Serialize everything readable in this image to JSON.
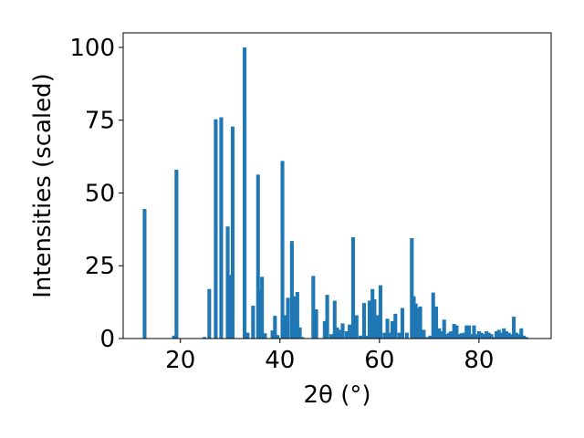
{
  "chart_data": {
    "type": "bar",
    "xlabel": "2θ (°)",
    "ylabel": "Intensities (scaled)",
    "xlim": [
      8.5,
      94.5
    ],
    "ylim": [
      0,
      105
    ],
    "x_ticks": [
      20,
      40,
      60,
      80
    ],
    "x_tick_labels": [
      "20",
      "40",
      "60",
      "80"
    ],
    "y_ticks": [
      0,
      25,
      50,
      75,
      100
    ],
    "y_tick_labels": [
      "0",
      "25",
      "50",
      "75",
      "100"
    ],
    "bar_color": "#1f77b4",
    "bar_width": 0.75,
    "x": [
      12.8,
      18.7,
      19.2,
      24.8,
      25.8,
      27.1,
      28.2,
      29.5,
      30.0,
      30.5,
      32.9,
      33.5,
      34.6,
      35.6,
      36.0,
      36.4,
      37.0,
      38.5,
      39.0,
      39.5,
      40.5,
      41.0,
      41.6,
      42.4,
      42.9,
      43.5,
      44.0,
      44.5,
      46.7,
      47.3,
      49.0,
      49.5,
      50.3,
      51.0,
      51.5,
      52.0,
      52.6,
      53.4,
      54.0,
      54.7,
      55.4,
      56.2,
      56.9,
      57.5,
      58.0,
      58.6,
      59.0,
      59.6,
      60.2,
      61.0,
      61.6,
      62.0,
      62.6,
      63.2,
      64.0,
      64.6,
      65.5,
      66.5,
      66.9,
      67.3,
      67.7,
      68.2,
      68.9,
      69.5,
      70.2,
      70.8,
      71.4,
      72.0,
      72.5,
      73.0,
      73.6,
      74.0,
      74.4,
      75.0,
      75.5,
      76.0,
      76.5,
      77.0,
      77.5,
      78.0,
      78.5,
      79.0,
      79.5,
      80.0,
      80.5,
      81.0,
      81.5,
      82.0,
      82.5,
      83.0,
      83.5,
      84.0,
      84.5,
      85.0,
      85.5,
      86.0,
      86.5,
      87.0,
      87.5,
      88.0,
      88.5,
      89.0,
      89.5
    ],
    "values": [
      44.5,
      1.0,
      58.0,
      0.5,
      17.0,
      75.3,
      76.0,
      38.5,
      21.8,
      72.8,
      100.0,
      2.0,
      11.3,
      56.3,
      16.8,
      21.2,
      1.8,
      2.8,
      7.8,
      1.2,
      61.0,
      8.0,
      14.0,
      33.5,
      14.5,
      16.0,
      3.8,
      0.5,
      21.5,
      10.0,
      6.0,
      15.0,
      1.5,
      13.0,
      3.8,
      3.0,
      5.2,
      2.5,
      4.8,
      34.8,
      8.0,
      1.0,
      12.2,
      1.0,
      13.0,
      17.0,
      13.5,
      8.0,
      18.3,
      2.0,
      6.8,
      2.0,
      6.0,
      8.5,
      2.0,
      10.5,
      2.0,
      34.5,
      14.5,
      12.0,
      10.5,
      11.0,
      3.0,
      0.5,
      1.0,
      15.8,
      11.0,
      3.5,
      2.5,
      6.5,
      1.5,
      2.0,
      2.5,
      5.0,
      4.5,
      1.5,
      1.8,
      2.0,
      4.5,
      4.5,
      1.5,
      4.5,
      1.5,
      2.5,
      2.0,
      1.5,
      2.5,
      2.0,
      1.5,
      0.5,
      2.5,
      3.0,
      2.0,
      3.5,
      2.5,
      2.0,
      1.5,
      7.5,
      2.0,
      1.5,
      3.5,
      1.0,
      0.5
    ]
  }
}
